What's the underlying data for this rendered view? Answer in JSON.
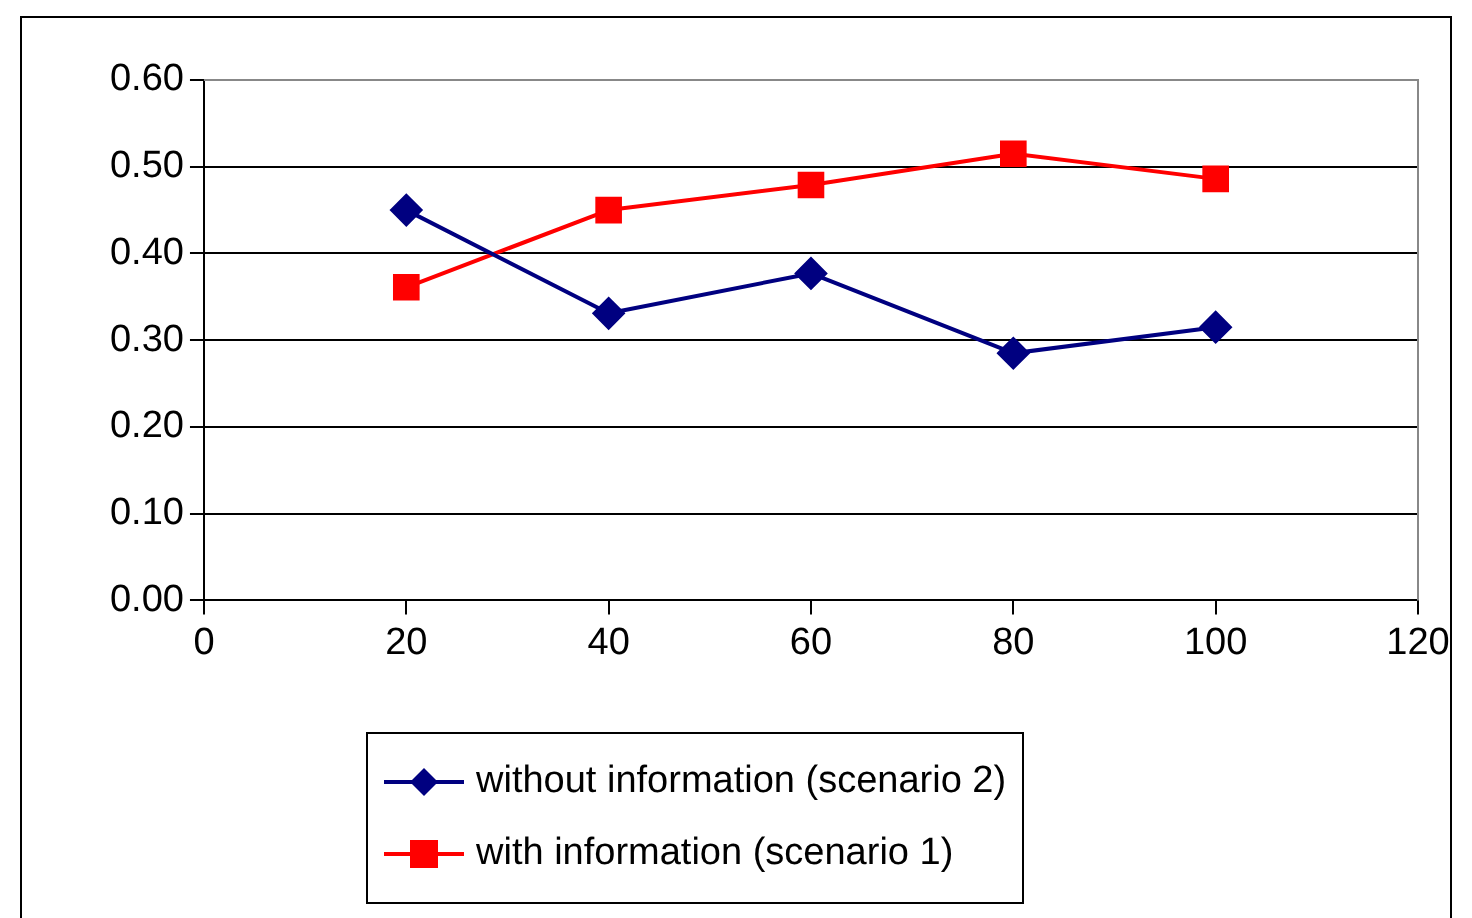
{
  "chart_data": {
    "type": "line",
    "x": [
      20,
      40,
      60,
      80,
      100
    ],
    "series": [
      {
        "name": "without information (scenario 2)",
        "color": "#000080",
        "marker": "diamond",
        "values": [
          0.45,
          0.331,
          0.377,
          0.285,
          0.315
        ]
      },
      {
        "name": "with information (scenario 1)",
        "color": "#ff0000",
        "marker": "square",
        "values": [
          0.361,
          0.45,
          0.479,
          0.515,
          0.486
        ]
      }
    ],
    "xlim": [
      0,
      120
    ],
    "xticks": [
      0,
      20,
      40,
      60,
      80,
      100,
      120
    ],
    "ylim": [
      0,
      0.6
    ],
    "yticks": [
      {
        "value": 0,
        "label": "0.00"
      },
      {
        "value": 0.1,
        "label": "0.10"
      },
      {
        "value": 0.2,
        "label": "0.20"
      },
      {
        "value": 0.3,
        "label": "0.30"
      },
      {
        "value": 0.4,
        "label": "0.40"
      },
      {
        "value": 0.5,
        "label": "0.50"
      },
      {
        "value": 0.6,
        "label": "0.60"
      }
    ],
    "grid": "y",
    "legend": "bottom",
    "line_style": "solid"
  }
}
